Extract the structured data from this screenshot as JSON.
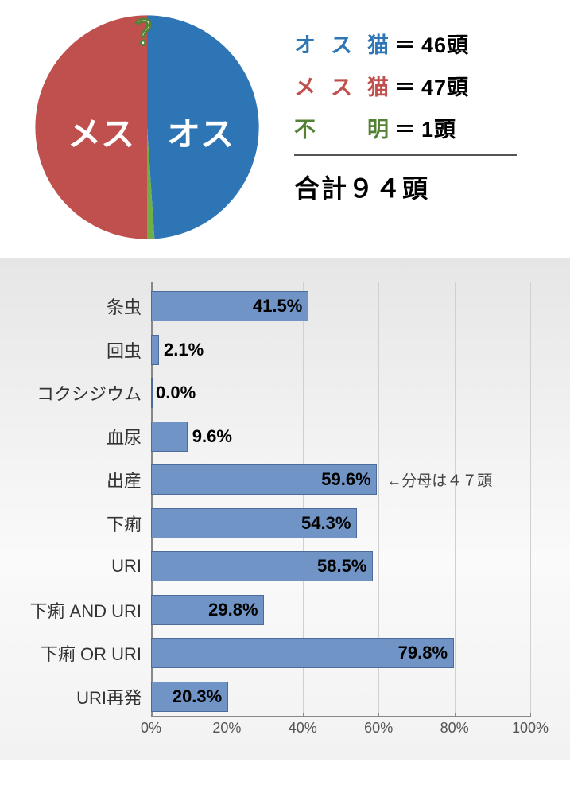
{
  "pie": {
    "slices": [
      {
        "key": "male",
        "label": "オス",
        "value": 46,
        "color": "#2e75b6",
        "start": 0,
        "end": 176.2
      },
      {
        "key": "unknown",
        "label": "？",
        "value": 1,
        "color": "#70ad47",
        "start": 176.2,
        "end": 180
      },
      {
        "key": "female",
        "label": "メス",
        "value": 47,
        "color": "#c0504d",
        "start": 180,
        "end": 360
      }
    ]
  },
  "legend": {
    "rows": [
      {
        "label": "オス猫",
        "count": "46頭",
        "color": "#2e75b6"
      },
      {
        "label": "メス猫",
        "count": "47頭",
        "color": "#c0504d"
      },
      {
        "label": "不明",
        "count": "1頭",
        "color": "#548235"
      }
    ],
    "equals": "＝",
    "total_text": "合計９４頭"
  },
  "bar_chart": {
    "type": "bar-horizontal",
    "bar_color": "#6f94c5",
    "bar_border": "#4c6a9a",
    "x_max": 100,
    "x_ticks": [
      0,
      20,
      40,
      60,
      80,
      100
    ],
    "x_tick_suffix": "%",
    "bars": [
      {
        "label": "条虫",
        "value": 41.5,
        "display": "41.5%",
        "note": ""
      },
      {
        "label": "回虫",
        "value": 2.1,
        "display": "2.1%",
        "note": ""
      },
      {
        "label": "コクシジウム",
        "value": 0.0,
        "display": "0.0%",
        "note": ""
      },
      {
        "label": "血尿",
        "value": 9.6,
        "display": "9.6%",
        "note": ""
      },
      {
        "label": "出産",
        "value": 59.6,
        "display": "59.6%",
        "note": "←分母は４７頭"
      },
      {
        "label": "下痢",
        "value": 54.3,
        "display": "54.3%",
        "note": ""
      },
      {
        "label": "URI",
        "value": 58.5,
        "display": "58.5%",
        "note": ""
      },
      {
        "label": "下痢 AND URI",
        "value": 29.8,
        "display": "29.8%",
        "note": ""
      },
      {
        "label": "下痢 OR URI",
        "value": 79.8,
        "display": "79.8%",
        "note": ""
      },
      {
        "label": "URI再発",
        "value": 20.3,
        "display": "20.3%",
        "note": ""
      }
    ]
  }
}
